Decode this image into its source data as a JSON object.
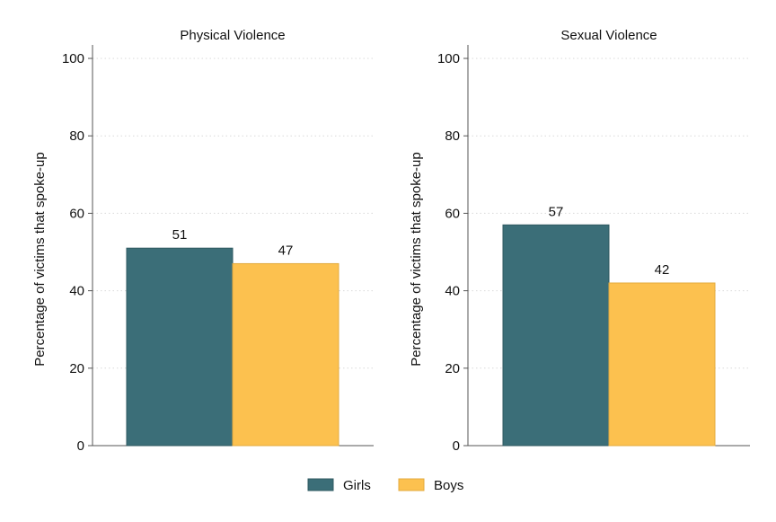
{
  "chart_data": [
    {
      "type": "bar",
      "title": "Physical Violence",
      "ylabel": "Percentage of victims that spoke-up",
      "xlabel": "",
      "ylim": [
        0,
        100
      ],
      "yticks": [
        0,
        20,
        40,
        60,
        80,
        100
      ],
      "grid": true,
      "series": [
        {
          "name": "Girls",
          "values": [
            51
          ]
        },
        {
          "name": "Boys",
          "values": [
            47
          ]
        }
      ]
    },
    {
      "type": "bar",
      "title": "Sexual Violence",
      "ylabel": "Percentage of victims that spoke-up",
      "xlabel": "",
      "ylim": [
        0,
        100
      ],
      "yticks": [
        0,
        20,
        40,
        60,
        80,
        100
      ],
      "grid": true,
      "series": [
        {
          "name": "Girls",
          "values": [
            57
          ]
        },
        {
          "name": "Boys",
          "values": [
            42
          ]
        }
      ]
    }
  ],
  "legend": {
    "placement": "bottom-center",
    "items": [
      {
        "label": "Girls",
        "color": "#3b6e78"
      },
      {
        "label": "Boys",
        "color": "#fcc14f"
      }
    ]
  },
  "colors": {
    "girls": "#3b6e78",
    "boys": "#fcc14f"
  }
}
